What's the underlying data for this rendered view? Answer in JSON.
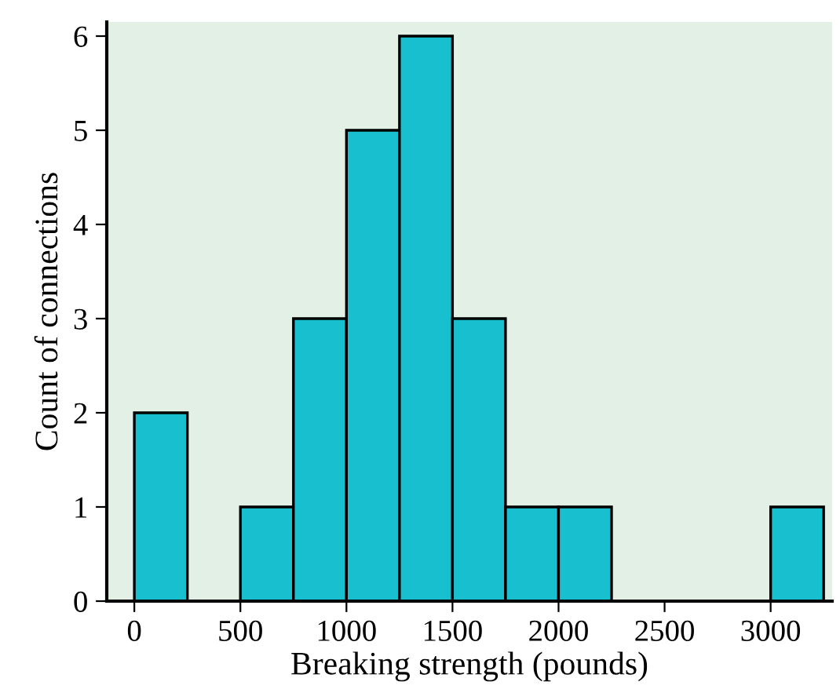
{
  "chart_data": {
    "type": "histogram",
    "xlabel": "Breaking strength (pounds)",
    "ylabel": "Count of connections",
    "bins": [
      0,
      250,
      500,
      750,
      1000,
      1250,
      1500,
      1750,
      2000,
      2250,
      2500,
      2750,
      3000,
      3250
    ],
    "values": [
      2,
      0,
      1,
      3,
      5,
      6,
      3,
      1,
      1,
      0,
      0,
      0,
      1
    ],
    "color": "#17bfcf",
    "xlim": [
      -130,
      3290
    ],
    "xticks": [
      0,
      500,
      1000,
      1500,
      2000,
      2500,
      3000
    ],
    "ylim": [
      0,
      6.15
    ],
    "yticks": [
      0,
      1,
      2,
      3,
      4,
      5,
      6
    ],
    "grid": false
  }
}
